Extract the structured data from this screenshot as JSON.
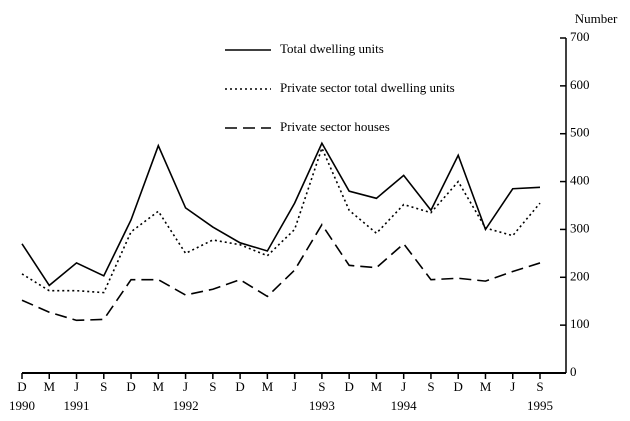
{
  "chart_data": {
    "type": "line",
    "y_label": "Number",
    "categories": [
      "D",
      "M",
      "J",
      "S",
      "D",
      "M",
      "J",
      "S",
      "D",
      "M",
      "J",
      "S",
      "D",
      "M",
      "J",
      "S",
      "D",
      "M",
      "J",
      "S"
    ],
    "category_years": [
      "1990",
      null,
      "1991",
      null,
      null,
      null,
      "1992",
      null,
      null,
      null,
      null,
      "1993",
      null,
      null,
      "1994",
      null,
      null,
      null,
      null,
      "1995"
    ],
    "series": [
      {
        "name": "Total dwelling units",
        "color": "#000000",
        "style": "solid",
        "values": [
          270,
          183,
          230,
          203,
          320,
          475,
          345,
          305,
          272,
          255,
          355,
          480,
          380,
          365,
          413,
          340,
          455,
          300,
          385,
          388
        ]
      },
      {
        "name": "Private sector total dwelling units",
        "color": "#000000",
        "style": "dotted",
        "values": [
          207,
          172,
          172,
          168,
          295,
          338,
          250,
          278,
          268,
          245,
          300,
          470,
          340,
          292,
          352,
          335,
          400,
          303,
          287,
          355
        ]
      },
      {
        "name": "Private sector houses",
        "color": "#000000",
        "style": "dashed",
        "values": [
          152,
          127,
          110,
          112,
          195,
          195,
          163,
          175,
          195,
          160,
          215,
          310,
          225,
          220,
          270,
          195,
          198,
          192,
          212,
          230
        ]
      }
    ],
    "ylim": [
      0,
      700
    ],
    "yticks": [
      0,
      100,
      200,
      300,
      400,
      500,
      600,
      700
    ],
    "y_axis_side": "right",
    "grid": false,
    "legend": "top-left"
  }
}
